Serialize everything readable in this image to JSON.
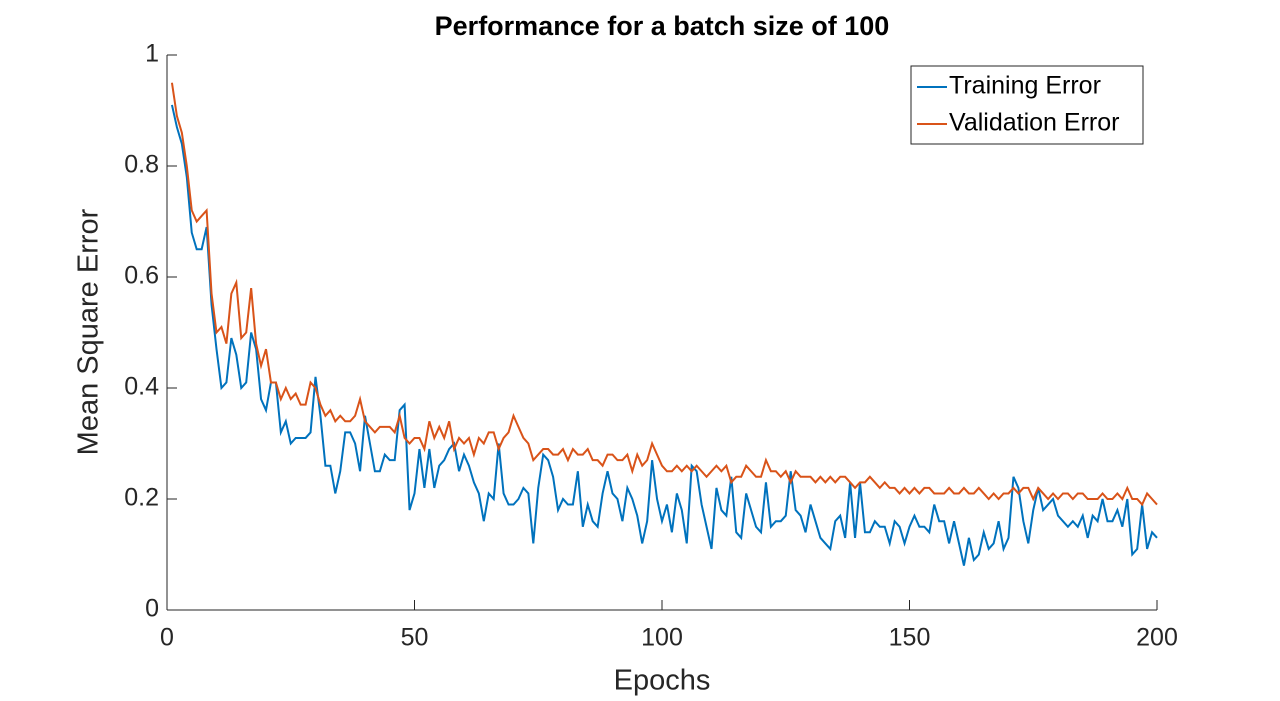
{
  "chart_data": {
    "type": "line",
    "title": "Performance for a batch size of 100",
    "x_label": "Epochs",
    "y_label": "Mean Square Error",
    "x": [
      1,
      2,
      3,
      4,
      5,
      6,
      7,
      8,
      9,
      10,
      11,
      12,
      13,
      14,
      15,
      16,
      17,
      18,
      19,
      20,
      21,
      22,
      23,
      24,
      25,
      26,
      27,
      28,
      29,
      30,
      31,
      32,
      33,
      34,
      35,
      36,
      37,
      38,
      39,
      40,
      41,
      42,
      43,
      44,
      45,
      46,
      47,
      48,
      49,
      50,
      51,
      52,
      53,
      54,
      55,
      56,
      57,
      58,
      59,
      60,
      61,
      62,
      63,
      64,
      65,
      66,
      67,
      68,
      69,
      70,
      71,
      72,
      73,
      74,
      75,
      76,
      77,
      78,
      79,
      80,
      81,
      82,
      83,
      84,
      85,
      86,
      87,
      88,
      89,
      90,
      91,
      92,
      93,
      94,
      95,
      96,
      97,
      98,
      99,
      100,
      101,
      102,
      103,
      104,
      105,
      106,
      107,
      108,
      109,
      110,
      111,
      112,
      113,
      114,
      115,
      116,
      117,
      118,
      119,
      120,
      121,
      122,
      123,
      124,
      125,
      126,
      127,
      128,
      129,
      130,
      131,
      132,
      133,
      134,
      135,
      136,
      137,
      138,
      139,
      140,
      141,
      142,
      143,
      144,
      145,
      146,
      147,
      148,
      149,
      150,
      151,
      152,
      153,
      154,
      155,
      156,
      157,
      158,
      159,
      160,
      161,
      162,
      163,
      164,
      165,
      166,
      167,
      168,
      169,
      170,
      171,
      172,
      173,
      174,
      175,
      176,
      177,
      178,
      179,
      180,
      181,
      182,
      183,
      184,
      185,
      186,
      187,
      188,
      189,
      190,
      191,
      192,
      193,
      194,
      195,
      196,
      197,
      198,
      199,
      200
    ],
    "series": [
      {
        "name": "Training Error",
        "color": "#0072BD",
        "values": [
          0.91,
          0.87,
          0.84,
          0.78,
          0.68,
          0.65,
          0.65,
          0.69,
          0.55,
          0.47,
          0.4,
          0.41,
          0.49,
          0.46,
          0.4,
          0.41,
          0.5,
          0.47,
          0.38,
          0.36,
          0.41,
          0.41,
          0.32,
          0.34,
          0.3,
          0.31,
          0.31,
          0.31,
          0.32,
          0.42,
          0.35,
          0.26,
          0.26,
          0.21,
          0.25,
          0.32,
          0.32,
          0.3,
          0.25,
          0.35,
          0.3,
          0.25,
          0.25,
          0.28,
          0.27,
          0.27,
          0.36,
          0.37,
          0.18,
          0.21,
          0.29,
          0.22,
          0.29,
          0.22,
          0.26,
          0.27,
          0.29,
          0.3,
          0.25,
          0.28,
          0.26,
          0.23,
          0.21,
          0.16,
          0.21,
          0.2,
          0.3,
          0.21,
          0.19,
          0.19,
          0.2,
          0.22,
          0.21,
          0.12,
          0.22,
          0.28,
          0.27,
          0.24,
          0.18,
          0.2,
          0.19,
          0.19,
          0.25,
          0.15,
          0.19,
          0.16,
          0.15,
          0.21,
          0.25,
          0.21,
          0.2,
          0.16,
          0.22,
          0.2,
          0.17,
          0.12,
          0.16,
          0.27,
          0.2,
          0.16,
          0.19,
          0.14,
          0.21,
          0.18,
          0.12,
          0.26,
          0.25,
          0.19,
          0.15,
          0.11,
          0.22,
          0.18,
          0.17,
          0.24,
          0.14,
          0.13,
          0.21,
          0.18,
          0.15,
          0.14,
          0.23,
          0.15,
          0.16,
          0.16,
          0.17,
          0.25,
          0.18,
          0.17,
          0.14,
          0.19,
          0.16,
          0.13,
          0.12,
          0.11,
          0.16,
          0.17,
          0.13,
          0.23,
          0.13,
          0.23,
          0.14,
          0.14,
          0.16,
          0.15,
          0.15,
          0.12,
          0.16,
          0.15,
          0.12,
          0.15,
          0.17,
          0.15,
          0.15,
          0.14,
          0.19,
          0.16,
          0.16,
          0.12,
          0.16,
          0.12,
          0.08,
          0.13,
          0.09,
          0.1,
          0.14,
          0.11,
          0.12,
          0.16,
          0.11,
          0.13,
          0.24,
          0.22,
          0.16,
          0.12,
          0.18,
          0.22,
          0.18,
          0.19,
          0.2,
          0.17,
          0.16,
          0.15,
          0.16,
          0.15,
          0.17,
          0.13,
          0.17,
          0.16,
          0.2,
          0.16,
          0.16,
          0.18,
          0.15,
          0.2,
          0.1,
          0.11,
          0.19,
          0.11,
          0.14,
          0.13
        ]
      },
      {
        "name": "Validation Error",
        "color": "#D95319",
        "values": [
          0.95,
          0.89,
          0.86,
          0.8,
          0.72,
          0.7,
          0.71,
          0.72,
          0.57,
          0.5,
          0.51,
          0.48,
          0.57,
          0.59,
          0.49,
          0.5,
          0.58,
          0.48,
          0.44,
          0.47,
          0.41,
          0.41,
          0.38,
          0.4,
          0.38,
          0.39,
          0.37,
          0.37,
          0.41,
          0.4,
          0.37,
          0.35,
          0.36,
          0.34,
          0.35,
          0.34,
          0.34,
          0.35,
          0.38,
          0.34,
          0.33,
          0.32,
          0.33,
          0.33,
          0.33,
          0.32,
          0.35,
          0.31,
          0.3,
          0.31,
          0.31,
          0.29,
          0.34,
          0.31,
          0.33,
          0.31,
          0.34,
          0.29,
          0.31,
          0.3,
          0.31,
          0.28,
          0.31,
          0.3,
          0.32,
          0.32,
          0.29,
          0.31,
          0.32,
          0.35,
          0.33,
          0.31,
          0.3,
          0.27,
          0.28,
          0.29,
          0.29,
          0.28,
          0.28,
          0.29,
          0.27,
          0.29,
          0.28,
          0.28,
          0.29,
          0.27,
          0.27,
          0.26,
          0.28,
          0.28,
          0.27,
          0.27,
          0.28,
          0.25,
          0.28,
          0.26,
          0.27,
          0.3,
          0.28,
          0.26,
          0.25,
          0.25,
          0.26,
          0.25,
          0.26,
          0.25,
          0.26,
          0.25,
          0.24,
          0.25,
          0.26,
          0.25,
          0.26,
          0.23,
          0.24,
          0.24,
          0.26,
          0.25,
          0.24,
          0.24,
          0.27,
          0.25,
          0.25,
          0.24,
          0.25,
          0.23,
          0.25,
          0.24,
          0.24,
          0.24,
          0.23,
          0.24,
          0.23,
          0.24,
          0.23,
          0.24,
          0.24,
          0.23,
          0.22,
          0.23,
          0.23,
          0.24,
          0.23,
          0.22,
          0.23,
          0.22,
          0.22,
          0.21,
          0.22,
          0.21,
          0.22,
          0.21,
          0.22,
          0.22,
          0.21,
          0.21,
          0.21,
          0.22,
          0.21,
          0.21,
          0.22,
          0.21,
          0.21,
          0.22,
          0.21,
          0.2,
          0.21,
          0.2,
          0.21,
          0.21,
          0.22,
          0.21,
          0.22,
          0.22,
          0.2,
          0.22,
          0.21,
          0.2,
          0.21,
          0.2,
          0.21,
          0.21,
          0.2,
          0.21,
          0.21,
          0.2,
          0.2,
          0.2,
          0.21,
          0.2,
          0.2,
          0.21,
          0.2,
          0.22,
          0.2,
          0.2,
          0.19,
          0.21,
          0.2,
          0.19
        ]
      }
    ],
    "xlim": [
      0,
      200
    ],
    "xticks": [
      0,
      50,
      100,
      150,
      200
    ],
    "ylim": [
      0,
      1
    ],
    "yticks": [
      0,
      0.2,
      0.4,
      0.6,
      0.8,
      1
    ],
    "legend": "upper right"
  }
}
